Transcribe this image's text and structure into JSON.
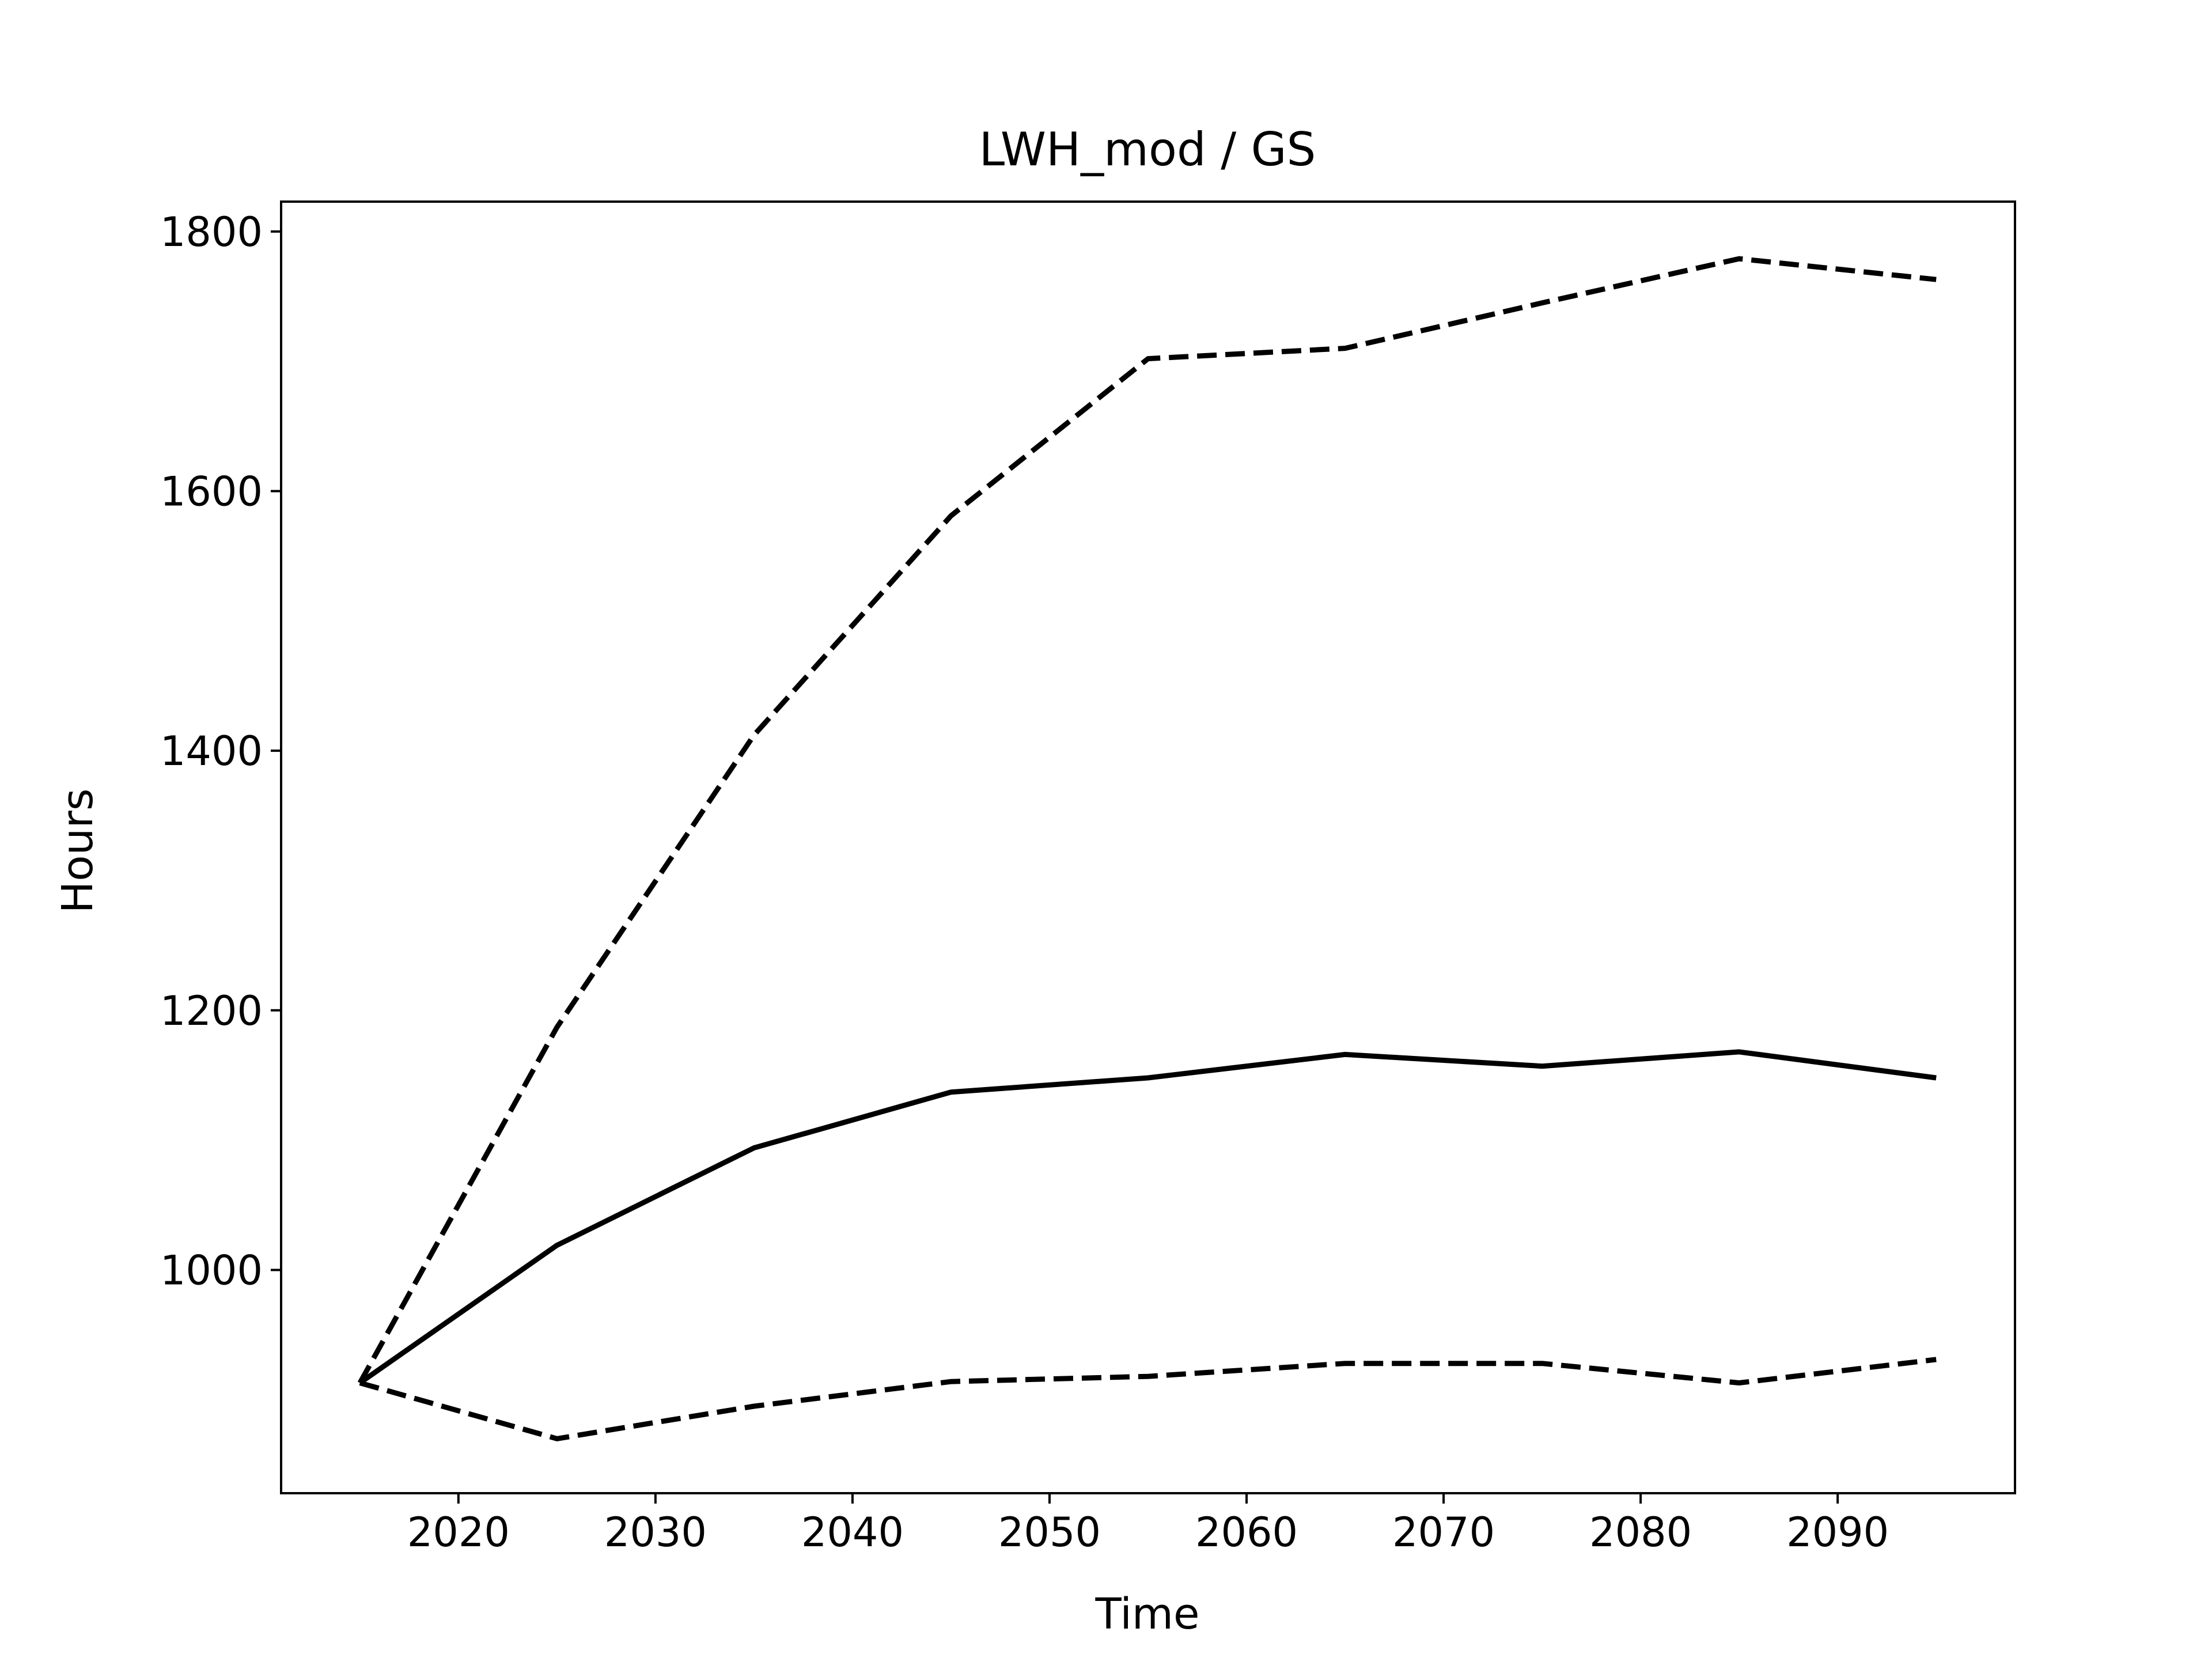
{
  "chart_data": {
    "type": "line",
    "title": "LWH_mod / GS",
    "xlabel": "Time",
    "ylabel": "Hours",
    "xlim": [
      2011,
      2099
    ],
    "ylim": [
      828,
      1823
    ],
    "x_ticks": [
      2020,
      2030,
      2040,
      2050,
      2060,
      2070,
      2080,
      2090
    ],
    "y_ticks": [
      1000,
      1200,
      1400,
      1600,
      1800
    ],
    "grid": false,
    "x": [
      2015,
      2025,
      2035,
      2045,
      2055,
      2065,
      2075,
      2085,
      2095
    ],
    "series": [
      {
        "style": "solid",
        "color": "#000000",
        "values": [
          913,
          1019,
          1094,
          1137,
          1148,
          1166,
          1157,
          1168,
          1148
        ]
      },
      {
        "style": "dashed",
        "color": "#000000",
        "values": [
          913,
          1187,
          1412,
          1581,
          1702,
          1710,
          1745,
          1779,
          1763
        ]
      },
      {
        "style": "dashed",
        "color": "#000000",
        "values": [
          913,
          870,
          895,
          914,
          918,
          928,
          928,
          913,
          931
        ]
      }
    ]
  }
}
